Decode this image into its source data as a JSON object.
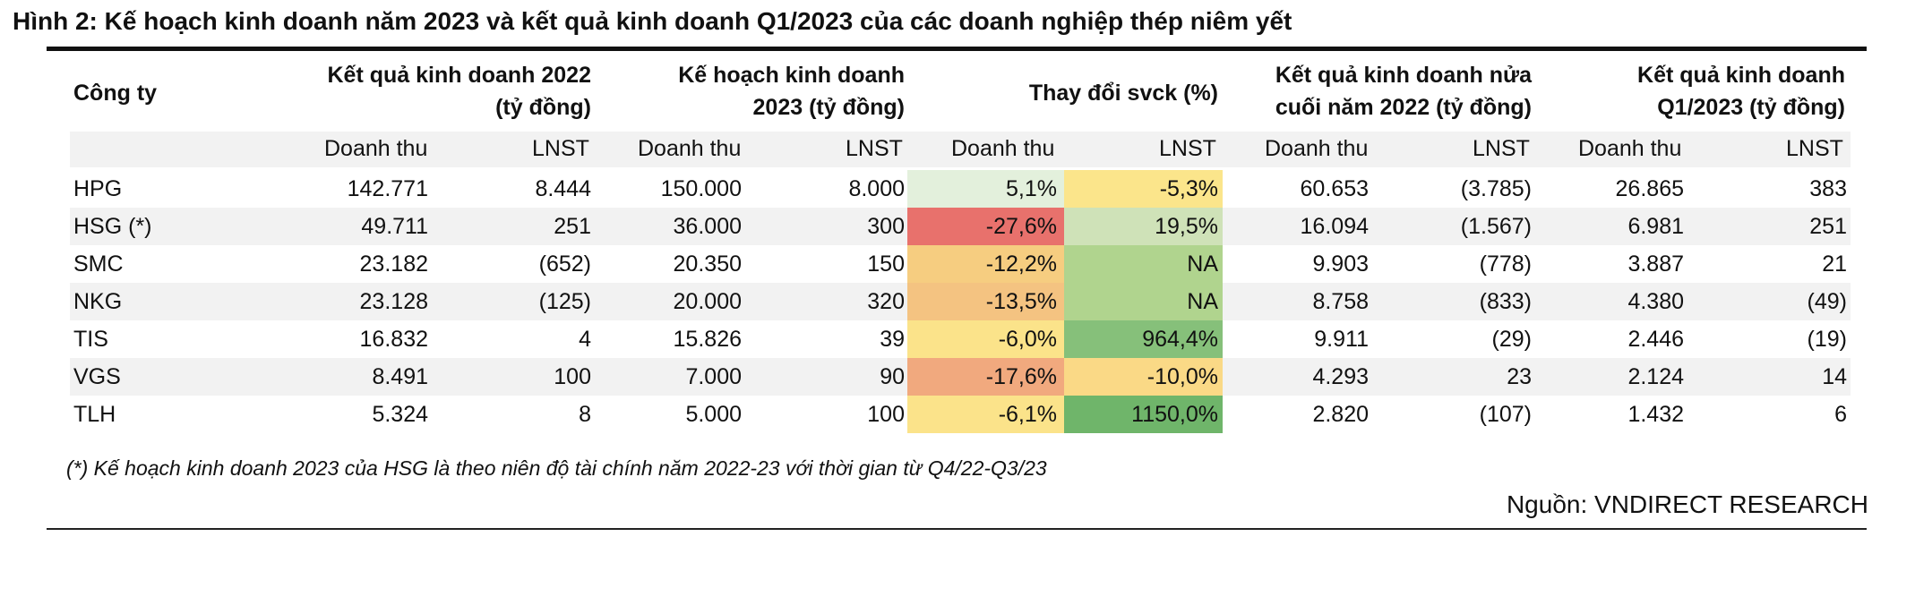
{
  "title": "Hình 2: Kế hoạch kinh doanh năm 2023 và kết quả kinh doanh Q1/2023 của các doanh nghiệp thép niêm yết",
  "table": {
    "company_header": "Công ty",
    "groups": [
      {
        "line1": "Kết quả kinh doanh 2022",
        "line2": "(tỷ đồng)"
      },
      {
        "line1": "Kế hoạch kinh doanh",
        "line2": "2023 (tỷ đồng)"
      },
      {
        "line1": "Thay đổi svck (%)",
        "line2": ""
      },
      {
        "line1": "Kết quả kinh doanh nửa",
        "line2": "cuối năm 2022 (tỷ đồng)"
      },
      {
        "line1": "Kết quả kinh doanh",
        "line2": "Q1/2023 (tỷ đồng)"
      }
    ],
    "sub_headers": [
      "Doanh thu",
      "LNST",
      "Doanh thu",
      "LNST",
      "Doanh thu",
      "LNST",
      "Doanh thu",
      "LNST",
      "Doanh thu",
      "LNST"
    ],
    "rows": [
      {
        "company": "HPG",
        "values": [
          "142.771",
          "8.444",
          "150.000",
          "8.000",
          "5,1%",
          "-5,3%",
          "60.653",
          "(3.785)",
          "26.865",
          "383"
        ],
        "heat_colors": [
          "#e3f0dc",
          "#fbe58b"
        ]
      },
      {
        "company": "HSG (*)",
        "values": [
          "49.711",
          "251",
          "36.000",
          "300",
          "-27,6%",
          "19,5%",
          "16.094",
          "(1.567)",
          "6.981",
          "251"
        ],
        "heat_colors": [
          "#e8716c",
          "#cfe2b8"
        ]
      },
      {
        "company": "SMC",
        "values": [
          "23.182",
          "(652)",
          "20.350",
          "150",
          "-12,2%",
          "NA",
          "9.903",
          "(778)",
          "3.887",
          "21"
        ],
        "heat_colors": [
          "#f6cd80",
          "#b0d48e"
        ]
      },
      {
        "company": "NKG",
        "values": [
          "23.128",
          "(125)",
          "20.000",
          "320",
          "-13,5%",
          "NA",
          "8.758",
          "(833)",
          "4.380",
          "(49)"
        ],
        "heat_colors": [
          "#f4c381",
          "#b0d48e"
        ]
      },
      {
        "company": "TIS",
        "values": [
          "16.832",
          "4",
          "15.826",
          "39",
          "-6,0%",
          "964,4%",
          "9.911",
          "(29)",
          "2.446",
          "(19)"
        ],
        "heat_colors": [
          "#fbe38a",
          "#86c07a"
        ]
      },
      {
        "company": "VGS",
        "values": [
          "8.491",
          "100",
          "7.000",
          "90",
          "-17,6%",
          "-10,0%",
          "4.293",
          "23",
          "2.124",
          "14"
        ],
        "heat_colors": [
          "#f1a97e",
          "#fad986"
        ]
      },
      {
        "company": "TLH",
        "values": [
          "5.324",
          "8",
          "5.000",
          "100",
          "-6,1%",
          "1150,0%",
          "2.820",
          "(107)",
          "1.432",
          "6"
        ],
        "heat_colors": [
          "#fbe38a",
          "#6fb56a"
        ]
      }
    ]
  },
  "footnote": "(*) Kế hoạch kinh doanh 2023 của HSG là theo niên độ tài chính năm 2022-23 với thời gian từ Q4/22-Q3/23",
  "source": "Nguồn: VNDIRECT RESEARCH"
}
